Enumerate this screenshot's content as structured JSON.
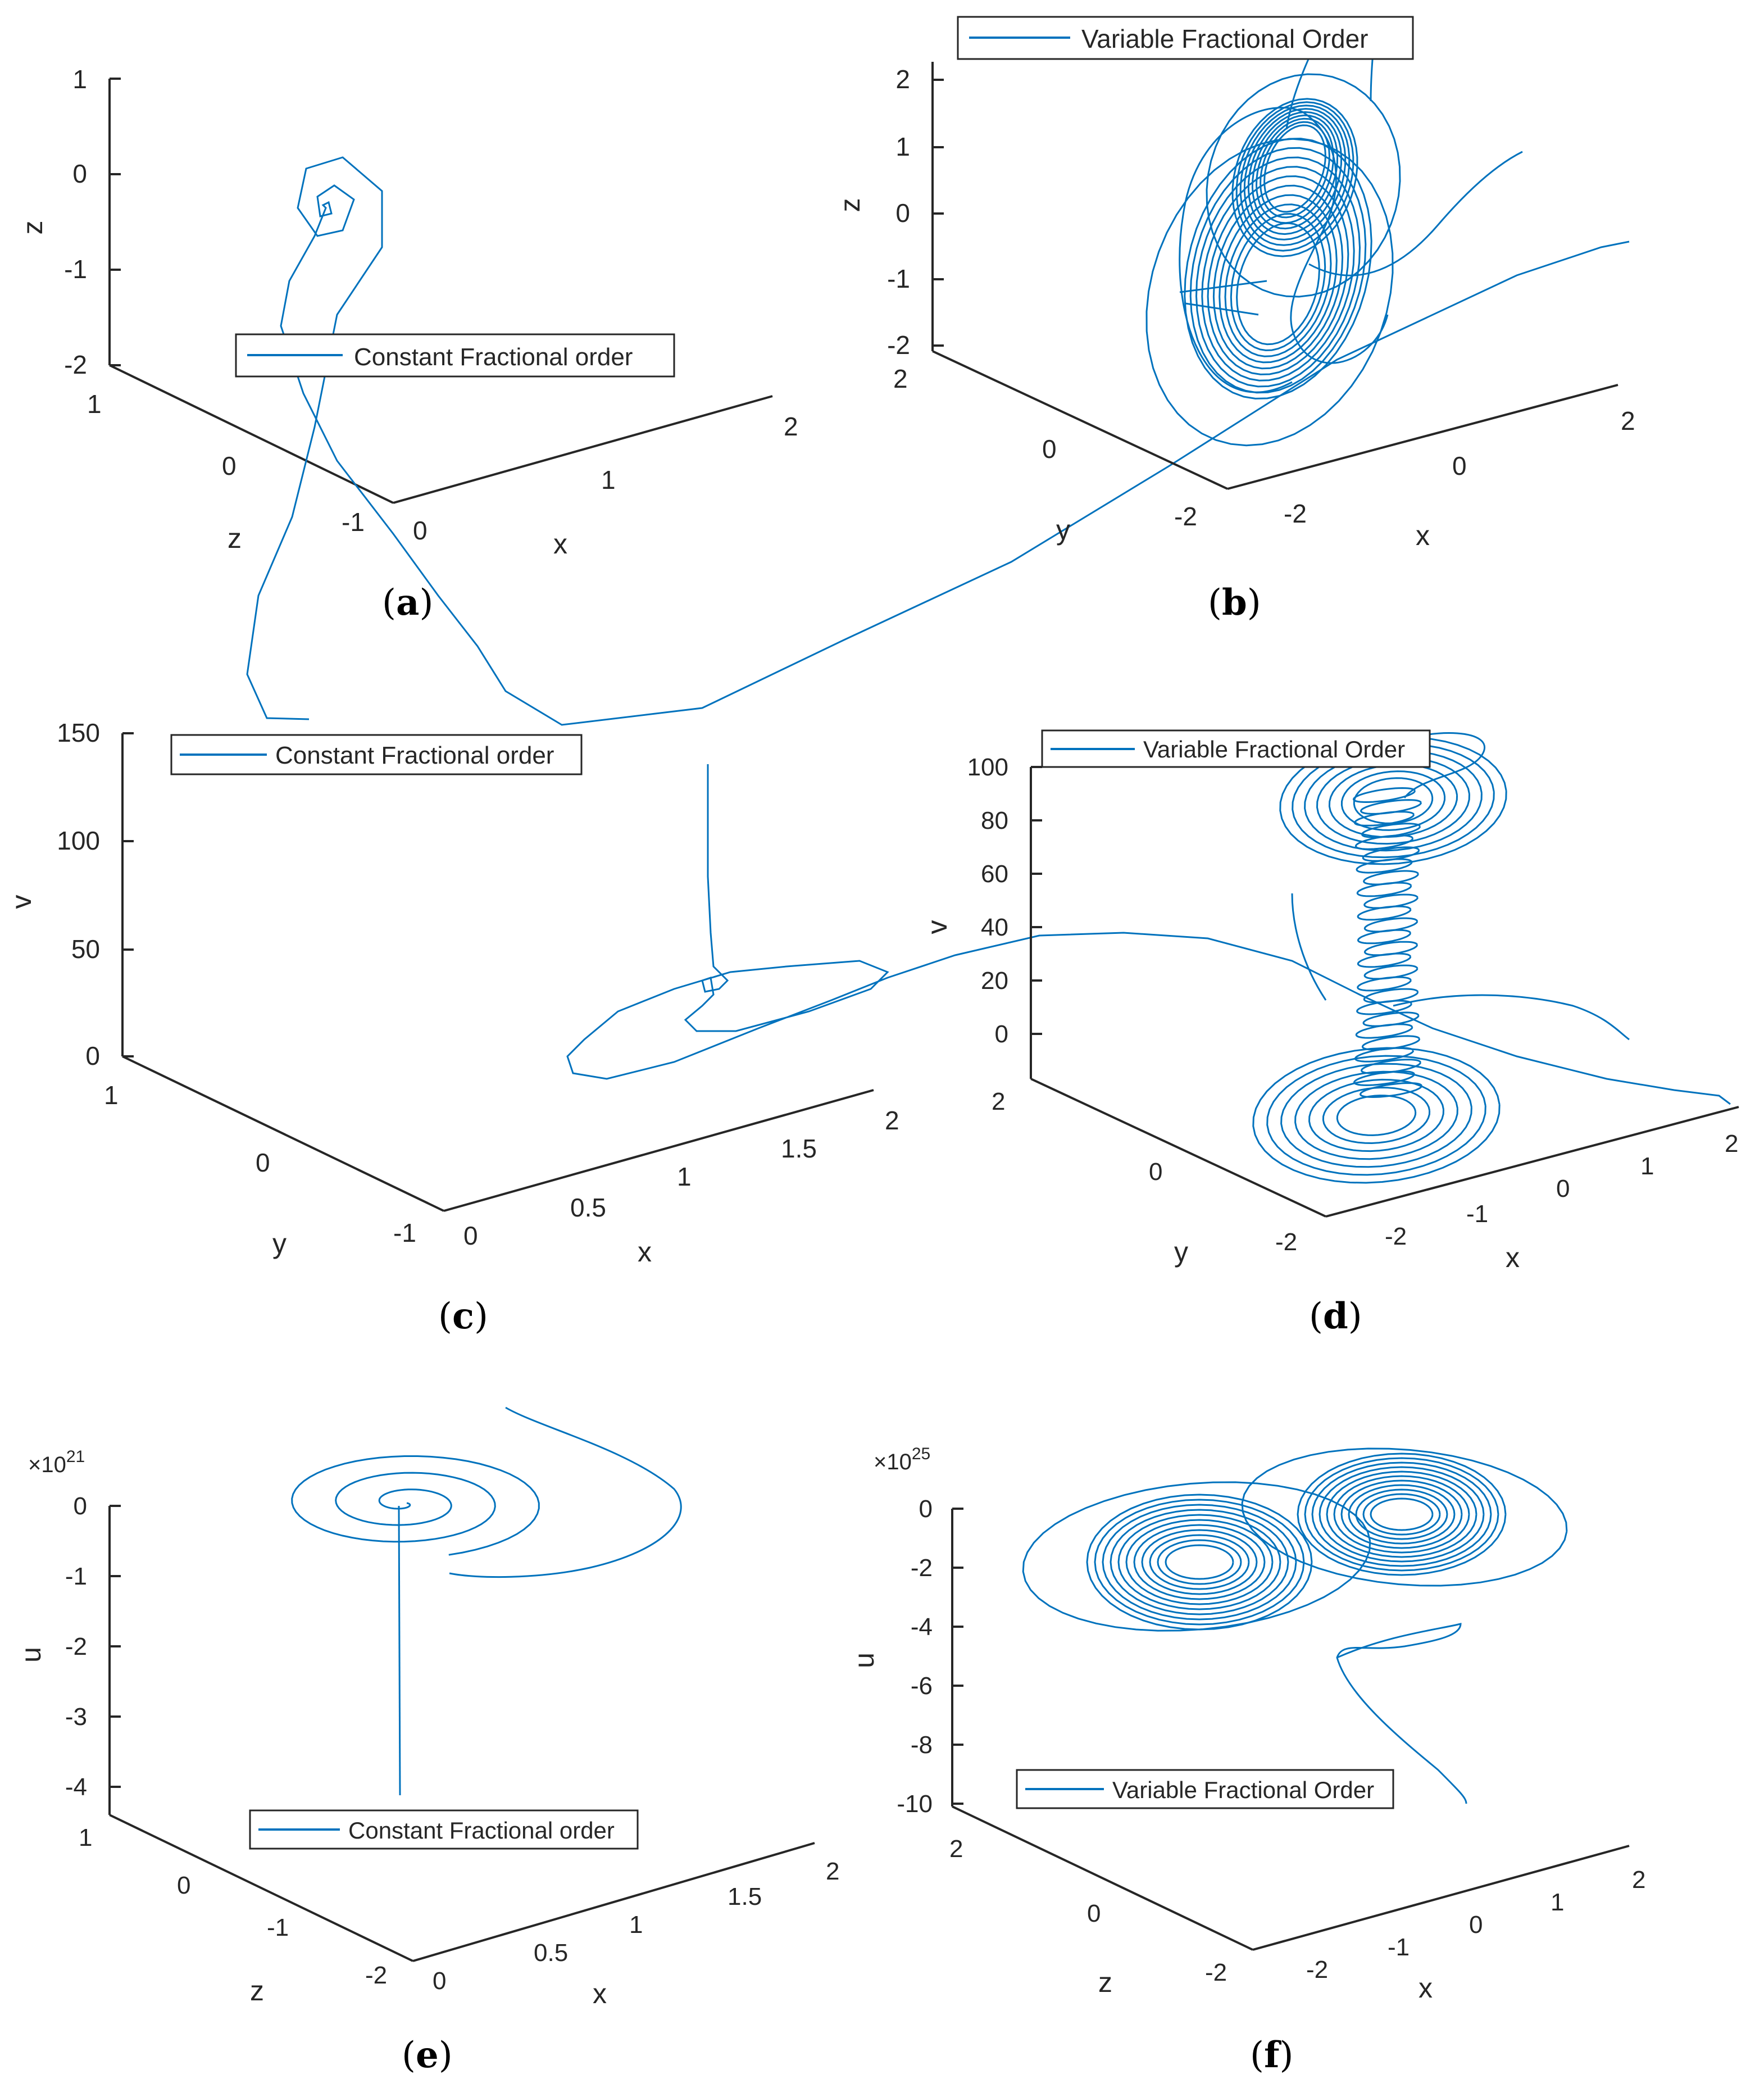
{
  "chart_data": [
    {
      "id": "a",
      "type": "line",
      "caption": "a",
      "legend": "Constant Fractional order",
      "legend_location": "lower-center",
      "series_color": "#0072bd",
      "axes": {
        "x": {
          "label": "x",
          "ticks": [
            "0",
            "1",
            "2"
          ]
        },
        "y": {
          "label": "z",
          "ticks": [
            "-1",
            "0",
            "1"
          ]
        },
        "z": {
          "label": "z",
          "ticks": [
            "-2",
            "-1",
            "0",
            "1"
          ]
        }
      },
      "points": [
        [
          550,
          1280
        ],
        [
          475,
          1278
        ],
        [
          440,
          1200
        ],
        [
          460,
          1060
        ],
        [
          520,
          920
        ],
        [
          560,
          760
        ],
        [
          600,
          560
        ],
        [
          680,
          440
        ],
        [
          680,
          340
        ],
        [
          610,
          280
        ],
        [
          545,
          300
        ],
        [
          530,
          370
        ],
        [
          565,
          420
        ],
        [
          610,
          410
        ],
        [
          630,
          355
        ],
        [
          595,
          330
        ],
        [
          565,
          350
        ],
        [
          570,
          385
        ],
        [
          590,
          380
        ],
        [
          585,
          360
        ],
        [
          575,
          365
        ],
        [
          580,
          370
        ],
        [
          560,
          420
        ],
        [
          515,
          500
        ],
        [
          500,
          580
        ],
        [
          540,
          700
        ],
        [
          600,
          820
        ],
        [
          700,
          950
        ],
        [
          780,
          1060
        ],
        [
          850,
          1150
        ],
        [
          900,
          1230
        ],
        [
          1000,
          1290
        ],
        [
          1250,
          1260
        ],
        [
          1500,
          1140
        ],
        [
          1800,
          1000
        ],
        [
          2080,
          830
        ],
        [
          2380,
          640
        ],
        [
          2700,
          490
        ],
        [
          2850,
          440
        ],
        [
          2900,
          430
        ]
      ]
    },
    {
      "id": "b",
      "type": "line",
      "caption": "b",
      "legend": "Variable Fractional Order",
      "legend_location": "top-left",
      "series_color": "#0072bd",
      "axes": {
        "x": {
          "label": "x",
          "ticks": [
            "-2",
            "0",
            "2"
          ]
        },
        "y": {
          "label": "y",
          "ticks": [
            "-2",
            "0",
            "2"
          ]
        },
        "z": {
          "label": "z",
          "ticks": [
            "-2",
            "-1",
            "0",
            "1",
            "2"
          ]
        }
      }
    },
    {
      "id": "c",
      "type": "line",
      "caption": "c",
      "legend": "Constant Fractional order",
      "legend_location": "top-left",
      "series_color": "#0072bd",
      "axes": {
        "x": {
          "label": "x",
          "ticks": [
            "0",
            "0.5",
            "1",
            "1.5",
            "2"
          ]
        },
        "y": {
          "label": "y",
          "ticks": [
            "-1",
            "0",
            "1"
          ]
        },
        "z": {
          "label": "v",
          "ticks": [
            "0",
            "50",
            "100",
            "150"
          ]
        }
      },
      "points": [
        [
          1260,
          1360
        ],
        [
          1260,
          1560
        ],
        [
          1265,
          1660
        ],
        [
          1270,
          1720
        ],
        [
          1295,
          1745
        ],
        [
          1280,
          1760
        ],
        [
          1255,
          1765
        ],
        [
          1250,
          1745
        ],
        [
          1265,
          1740
        ],
        [
          1270,
          1770
        ],
        [
          1250,
          1790
        ],
        [
          1220,
          1815
        ],
        [
          1240,
          1835
        ],
        [
          1310,
          1835
        ],
        [
          1440,
          1800
        ],
        [
          1550,
          1760
        ],
        [
          1580,
          1730
        ],
        [
          1530,
          1710
        ],
        [
          1400,
          1720
        ],
        [
          1300,
          1730
        ],
        [
          1200,
          1760
        ],
        [
          1100,
          1800
        ],
        [
          1040,
          1850
        ],
        [
          1010,
          1880
        ],
        [
          1020,
          1910
        ],
        [
          1080,
          1920
        ],
        [
          1200,
          1890
        ],
        [
          1350,
          1830
        ],
        [
          1480,
          1780
        ],
        [
          1580,
          1740
        ],
        [
          1700,
          1700
        ],
        [
          1850,
          1665
        ],
        [
          2000,
          1660
        ],
        [
          2150,
          1670
        ],
        [
          2300,
          1710
        ],
        [
          2420,
          1770
        ],
        [
          2550,
          1830
        ],
        [
          2700,
          1880
        ],
        [
          2860,
          1920
        ],
        [
          2980,
          1940
        ],
        [
          3060,
          1950
        ],
        [
          3080,
          1965
        ]
      ]
    },
    {
      "id": "d",
      "type": "line",
      "caption": "d",
      "legend": "Variable Fractional Order",
      "legend_location": "top-left",
      "series_color": "#0072bd",
      "axes": {
        "x": {
          "label": "x",
          "ticks": [
            "-2",
            "-1",
            "0",
            "1",
            "2"
          ]
        },
        "y": {
          "label": "y",
          "ticks": [
            "-2",
            "0",
            "2"
          ]
        },
        "z": {
          "label": "v",
          "ticks": [
            "0",
            "20",
            "40",
            "60",
            "80",
            "100"
          ]
        }
      }
    },
    {
      "id": "e",
      "type": "line",
      "caption": "e",
      "legend": "Constant Fractional order",
      "legend_location": "lower-center",
      "series_color": "#0072bd",
      "exponent": "×10",
      "exponent_power": "21",
      "axes": {
        "x": {
          "label": "x",
          "ticks": [
            "0",
            "0.5",
            "1",
            "1.5",
            "2"
          ]
        },
        "y": {
          "label": "z",
          "ticks": [
            "-2",
            "-1",
            "0",
            "1"
          ]
        },
        "z": {
          "label": "u",
          "ticks": [
            "-4",
            "-3",
            "-2",
            "-1",
            "0"
          ]
        }
      }
    },
    {
      "id": "f",
      "type": "line",
      "caption": "f",
      "legend": "Variable Fractional Order",
      "legend_location": "lower-center",
      "series_color": "#0072bd",
      "exponent": "×10",
      "exponent_power": "25",
      "axes": {
        "x": {
          "label": "x",
          "ticks": [
            "-2",
            "-1",
            "0",
            "1",
            "2"
          ]
        },
        "y": {
          "label": "z",
          "ticks": [
            "-2",
            "0",
            "2"
          ]
        },
        "z": {
          "label": "u",
          "ticks": [
            "-10",
            "-8",
            "-6",
            "-4",
            "-2",
            "0"
          ]
        }
      }
    }
  ]
}
